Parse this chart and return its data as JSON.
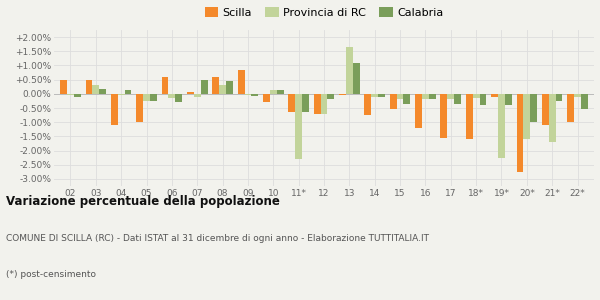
{
  "categories": [
    "02",
    "03",
    "04",
    "05",
    "06",
    "07",
    "08",
    "09",
    "10",
    "11*",
    "12",
    "13",
    "14",
    "15",
    "16",
    "17",
    "18*",
    "19*",
    "20*",
    "21*",
    "22*"
  ],
  "scilla": [
    0.5,
    0.48,
    -1.1,
    -1.0,
    0.6,
    0.05,
    0.6,
    0.85,
    -0.3,
    -0.65,
    -0.7,
    -0.05,
    -0.75,
    -0.55,
    -1.2,
    -1.55,
    -1.6,
    -0.1,
    -2.75,
    -1.1,
    -1.0
  ],
  "provincia": [
    -0.05,
    0.3,
    -0.05,
    -0.25,
    -0.15,
    -0.1,
    0.3,
    -0.05,
    0.12,
    -2.3,
    -0.7,
    1.65,
    -0.1,
    -0.2,
    -0.2,
    -0.2,
    -0.15,
    -2.25,
    -1.6,
    -1.7,
    -0.1
  ],
  "calabria": [
    -0.1,
    0.18,
    0.15,
    -0.25,
    -0.28,
    0.5,
    0.46,
    -0.08,
    0.13,
    -0.65,
    -0.18,
    1.1,
    -0.1,
    -0.35,
    -0.2,
    -0.35,
    -0.4,
    -0.4,
    -1.0,
    -0.27,
    -0.52
  ],
  "scilla_color": "#f4892b",
  "provincia_color": "#c2d49a",
  "calabria_color": "#7a9e5a",
  "background_color": "#f2f2ed",
  "grid_color": "#dddddd",
  "title": "Variazione percentuale della popolazione",
  "subtitle": "COMUNE DI SCILLA (RC) - Dati ISTAT al 31 dicembre di ogni anno - Elaborazione TUTTITALIA.IT",
  "footnote": "(*) post-censimento",
  "ylim": [
    -3.25,
    2.25
  ],
  "yticks": [
    -3.0,
    -2.5,
    -2.0,
    -1.5,
    -1.0,
    -0.5,
    0.0,
    0.5,
    1.0,
    1.5,
    2.0
  ],
  "ytick_labels": [
    "-3.00%",
    "-2.50%",
    "-2.00%",
    "-1.50%",
    "-1.00%",
    "-0.50%",
    "0.00%",
    "+0.50%",
    "+1.00%",
    "+1.50%",
    "+2.00%"
  ],
  "bar_width": 0.27,
  "figsize": [
    6.0,
    3.0
  ],
  "dpi": 100
}
